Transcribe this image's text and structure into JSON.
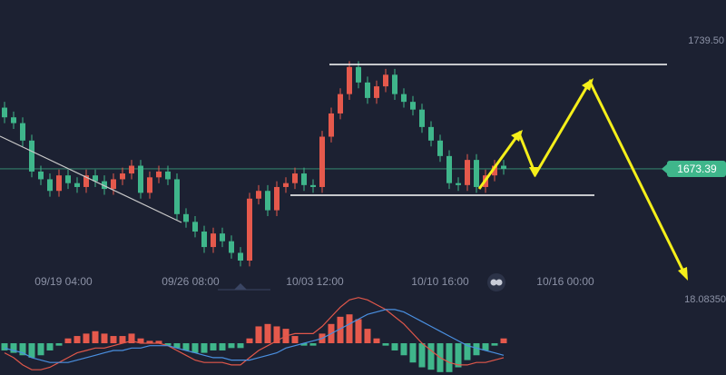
{
  "chart_data": {
    "type": "candlestick",
    "xlim": [
      -0.5,
      79.5
    ],
    "xticks": [
      {
        "value": 6.5,
        "label": "09/19 04:00"
      },
      {
        "value": 20.5,
        "label": "09/26 08:00"
      },
      {
        "value": 34.2,
        "label": "10/03 12:00"
      },
      {
        "value": 48,
        "label": "10/10 16:00"
      },
      {
        "value": 61.8,
        "label": "10/16 00:00"
      }
    ],
    "ylim": [
      1619.9,
      1760.6
    ],
    "yticks": [
      {
        "value": 1739.5,
        "label": "1739.50"
      }
    ],
    "up_color": "#e5594c",
    "down_color": "#3fb68b",
    "last_price": 1673.39,
    "last_price_color": "#3fb68b",
    "open": [
      1705,
      1700,
      1697,
      1688,
      1672,
      1668,
      1662,
      1670,
      1666,
      1664,
      1670,
      1667,
      1663,
      1668,
      1671,
      1675,
      1661,
      1669,
      1672,
      1668,
      1650,
      1646,
      1641,
      1633,
      1640,
      1636,
      1630,
      1626,
      1658,
      1662,
      1652,
      1664,
      1666,
      1671,
      1665,
      1664,
      1690,
      1702,
      1712,
      1726,
      1718,
      1710,
      1716,
      1722,
      1712,
      1708,
      1704,
      1695,
      1688,
      1680,
      1666,
      1665,
      1678,
      1664,
      1670,
      1675
    ],
    "high": [
      1708,
      1703,
      1700,
      1691,
      1675,
      1671,
      1673,
      1673,
      1669,
      1673,
      1673,
      1670,
      1671,
      1674,
      1678,
      1678,
      1672,
      1675,
      1675,
      1671,
      1653,
      1649,
      1644,
      1643,
      1643,
      1639,
      1633,
      1661,
      1665,
      1665,
      1667,
      1669,
      1674,
      1674,
      1668,
      1693,
      1705,
      1715,
      1729,
      1729,
      1721,
      1719,
      1725,
      1725,
      1715,
      1711,
      1707,
      1698,
      1691,
      1683,
      1669,
      1681,
      1681,
      1673,
      1678,
      1678
    ],
    "low": [
      1697,
      1694,
      1685,
      1669,
      1665,
      1659,
      1659,
      1663,
      1661,
      1661,
      1664,
      1660,
      1660,
      1665,
      1668,
      1658,
      1658,
      1666,
      1665,
      1647,
      1643,
      1638,
      1630,
      1630,
      1633,
      1627,
      1623,
      1623,
      1655,
      1649,
      1649,
      1661,
      1663,
      1662,
      1661,
      1661,
      1687,
      1699,
      1709,
      1715,
      1707,
      1707,
      1713,
      1709,
      1705,
      1701,
      1692,
      1685,
      1677,
      1663,
      1662,
      1662,
      1661,
      1661,
      1667,
      1670.39
    ],
    "close": [
      1700,
      1697,
      1688,
      1672,
      1668,
      1662,
      1670,
      1666,
      1664,
      1670,
      1667,
      1663,
      1668,
      1671,
      1675,
      1661,
      1669,
      1672,
      1668,
      1650,
      1646,
      1641,
      1633,
      1640,
      1636,
      1630,
      1626,
      1658,
      1662,
      1652,
      1664,
      1666,
      1671,
      1665,
      1664,
      1690,
      1702,
      1712,
      1726,
      1718,
      1710,
      1716,
      1722,
      1712,
      1708,
      1704,
      1695,
      1688,
      1680,
      1666,
      1665,
      1678,
      1664,
      1670,
      1675,
      1673.39
    ],
    "macd": {
      "ylim": [
        -13.2,
        20
      ],
      "yticks": [
        {
          "value": 18.0835,
          "label": "18.08350"
        }
      ],
      "histogram": [
        -3,
        -4,
        -5,
        -6,
        -5,
        -3,
        -1,
        2,
        3,
        4,
        5,
        4,
        3,
        3,
        4,
        2,
        1,
        1,
        -1,
        -2,
        -3,
        -4,
        -4,
        -3,
        -3,
        -2,
        -2,
        2,
        7,
        8,
        7,
        6,
        3,
        -1,
        -1,
        4,
        8,
        11,
        12,
        10,
        6,
        2,
        -1,
        -3,
        -5,
        -8,
        -10,
        -11,
        -12,
        -12,
        -10,
        -7,
        -5,
        -3,
        -1,
        2
      ],
      "series": [
        {
          "color": "#e0574a",
          "values": [
            -4,
            -6,
            -9,
            -11,
            -11,
            -10,
            -8,
            -6,
            -4,
            -3,
            -2,
            -2,
            -1,
            0,
            1,
            0,
            0,
            0,
            -1,
            -3,
            -5,
            -7,
            -8,
            -8,
            -8,
            -9,
            -9,
            -6,
            -3,
            -1,
            1,
            3,
            4,
            4,
            4,
            7,
            11,
            15,
            18,
            19,
            18,
            16,
            14,
            11,
            8,
            4,
            0,
            -3,
            -6,
            -8,
            -9,
            -9,
            -8,
            -8,
            -7,
            -6
          ]
        },
        {
          "color": "#4a8fe0",
          "values": [
            -2,
            -3,
            -4,
            -6,
            -7,
            -8,
            -8,
            -8,
            -7,
            -6,
            -5,
            -4,
            -3,
            -3,
            -2,
            -2,
            -1,
            -1,
            -1,
            -2,
            -3,
            -4,
            -5,
            -6,
            -6,
            -7,
            -7,
            -7,
            -6,
            -5,
            -4,
            -2,
            -1,
            0,
            1,
            2,
            4,
            6,
            8,
            10,
            12,
            13,
            14,
            14,
            13,
            11,
            9,
            7,
            5,
            3,
            1,
            -1,
            -2,
            -3,
            -4,
            -5
          ]
        }
      ]
    }
  }
}
